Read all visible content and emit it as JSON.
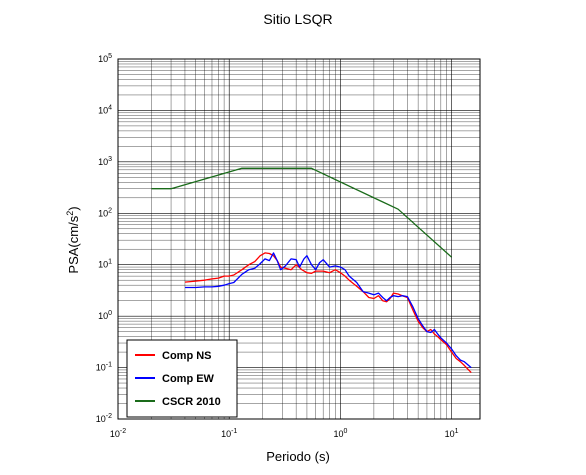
{
  "chart_data": {
    "type": "line",
    "title": "Sitio LSQR",
    "xlabel": "Periodo (s)",
    "ylabel_main": "PSA(cm/s",
    "ylabel_sup": "2",
    "ylabel_close": ")",
    "x_scale": "log",
    "y_scale": "log",
    "xlim": [
      0.01,
      18
    ],
    "ylim": [
      0.01,
      100000
    ],
    "grid": true,
    "legend_position": "bottom-left",
    "x_ticks": [
      {
        "base": "10",
        "exp": "-2",
        "value": 0.01
      },
      {
        "base": "10",
        "exp": "-1",
        "value": 0.1
      },
      {
        "base": "10",
        "exp": "0",
        "value": 1
      },
      {
        "base": "10",
        "exp": "1",
        "value": 10
      }
    ],
    "y_ticks": [
      {
        "base": "10",
        "exp": "-2",
        "value": 0.01
      },
      {
        "base": "10",
        "exp": "-1",
        "value": 0.1
      },
      {
        "base": "10",
        "exp": "0",
        "value": 1
      },
      {
        "base": "10",
        "exp": "1",
        "value": 10
      },
      {
        "base": "10",
        "exp": "2",
        "value": 100
      },
      {
        "base": "10",
        "exp": "3",
        "value": 1000
      },
      {
        "base": "10",
        "exp": "4",
        "value": 10000
      },
      {
        "base": "10",
        "exp": "5",
        "value": 100000
      }
    ],
    "series": [
      {
        "name": "Comp NS",
        "color": "#ff0000",
        "points": [
          [
            0.04,
            4.6
          ],
          [
            0.05,
            4.8
          ],
          [
            0.06,
            5.0
          ],
          [
            0.07,
            5.3
          ],
          [
            0.08,
            5.5
          ],
          [
            0.09,
            6.0
          ],
          [
            0.1,
            6.0
          ],
          [
            0.11,
            6.3
          ],
          [
            0.13,
            8.0
          ],
          [
            0.15,
            10.0
          ],
          [
            0.17,
            11.5
          ],
          [
            0.19,
            15.0
          ],
          [
            0.21,
            17.0
          ],
          [
            0.23,
            16.5
          ],
          [
            0.25,
            15.0
          ],
          [
            0.27,
            12.0
          ],
          [
            0.29,
            9.0
          ],
          [
            0.32,
            8.5
          ],
          [
            0.36,
            8.0
          ],
          [
            0.4,
            10.0
          ],
          [
            0.45,
            8.0
          ],
          [
            0.5,
            7.0
          ],
          [
            0.55,
            6.8
          ],
          [
            0.6,
            7.5
          ],
          [
            0.7,
            7.5
          ],
          [
            0.8,
            7.0
          ],
          [
            0.9,
            8.0
          ],
          [
            1.0,
            7.0
          ],
          [
            1.1,
            6.0
          ],
          [
            1.2,
            5.0
          ],
          [
            1.4,
            3.8
          ],
          [
            1.6,
            3.0
          ],
          [
            1.8,
            2.3
          ],
          [
            2.0,
            2.2
          ],
          [
            2.2,
            2.5
          ],
          [
            2.4,
            2.0
          ],
          [
            2.6,
            1.9
          ],
          [
            2.8,
            2.2
          ],
          [
            3.0,
            2.8
          ],
          [
            3.3,
            2.7
          ],
          [
            3.6,
            2.5
          ],
          [
            4.0,
            2.3
          ],
          [
            4.5,
            1.3
          ],
          [
            5.0,
            0.8
          ],
          [
            5.5,
            0.6
          ],
          [
            6.0,
            0.5
          ],
          [
            6.5,
            0.55
          ],
          [
            7.0,
            0.45
          ],
          [
            7.5,
            0.4
          ],
          [
            8.0,
            0.35
          ],
          [
            9.0,
            0.28
          ],
          [
            10.0,
            0.2
          ],
          [
            11.0,
            0.15
          ],
          [
            12.0,
            0.13
          ],
          [
            13.0,
            0.11
          ],
          [
            15.0,
            0.08
          ]
        ]
      },
      {
        "name": "Comp EW",
        "color": "#0000ff",
        "points": [
          [
            0.04,
            3.6
          ],
          [
            0.05,
            3.6
          ],
          [
            0.06,
            3.7
          ],
          [
            0.07,
            3.7
          ],
          [
            0.08,
            3.8
          ],
          [
            0.09,
            4.0
          ],
          [
            0.1,
            4.3
          ],
          [
            0.11,
            4.5
          ],
          [
            0.13,
            6.5
          ],
          [
            0.15,
            8.0
          ],
          [
            0.17,
            8.5
          ],
          [
            0.19,
            10.5
          ],
          [
            0.21,
            13.0
          ],
          [
            0.23,
            12.0
          ],
          [
            0.25,
            17.0
          ],
          [
            0.27,
            12.0
          ],
          [
            0.29,
            8.0
          ],
          [
            0.32,
            9.5
          ],
          [
            0.36,
            13.0
          ],
          [
            0.4,
            12.5
          ],
          [
            0.43,
            9.0
          ],
          [
            0.47,
            13.0
          ],
          [
            0.5,
            15.0
          ],
          [
            0.55,
            10.0
          ],
          [
            0.6,
            8.0
          ],
          [
            0.65,
            11.0
          ],
          [
            0.7,
            12.5
          ],
          [
            0.8,
            9.0
          ],
          [
            0.9,
            9.5
          ],
          [
            1.0,
            9.0
          ],
          [
            1.1,
            8.0
          ],
          [
            1.2,
            6.0
          ],
          [
            1.4,
            4.5
          ],
          [
            1.6,
            3.0
          ],
          [
            1.8,
            2.8
          ],
          [
            2.0,
            2.6
          ],
          [
            2.2,
            2.8
          ],
          [
            2.4,
            2.3
          ],
          [
            2.6,
            2.0
          ],
          [
            2.8,
            2.3
          ],
          [
            3.0,
            2.5
          ],
          [
            3.3,
            2.4
          ],
          [
            3.6,
            2.5
          ],
          [
            4.0,
            2.4
          ],
          [
            4.5,
            1.5
          ],
          [
            5.0,
            0.9
          ],
          [
            5.5,
            0.65
          ],
          [
            6.0,
            0.5
          ],
          [
            6.5,
            0.48
          ],
          [
            7.0,
            0.55
          ],
          [
            7.5,
            0.45
          ],
          [
            8.0,
            0.38
          ],
          [
            9.0,
            0.3
          ],
          [
            10.0,
            0.23
          ],
          [
            11.0,
            0.17
          ],
          [
            12.0,
            0.14
          ],
          [
            13.0,
            0.13
          ],
          [
            15.0,
            0.1
          ]
        ]
      },
      {
        "name": "CSCR 2010",
        "color": "#1a6b1a",
        "points": [
          [
            0.02,
            300
          ],
          [
            0.03,
            300
          ],
          [
            0.13,
            750
          ],
          [
            0.55,
            750
          ],
          [
            3.3,
            120
          ],
          [
            10.0,
            14
          ]
        ]
      }
    ]
  }
}
